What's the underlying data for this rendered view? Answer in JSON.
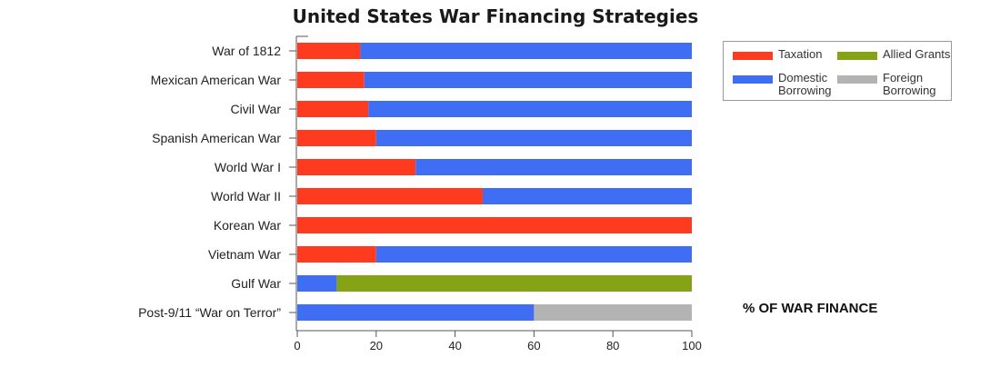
{
  "chart_data": {
    "type": "bar",
    "orientation": "horizontal",
    "stacked": true,
    "title": "United States War Financing Strategies",
    "xlabel": "% OF WAR FINANCE",
    "ylabel": "",
    "xlim": [
      0,
      100
    ],
    "xticks": [
      0,
      20,
      40,
      60,
      80,
      100
    ],
    "grid": false,
    "legend_position": "top-right",
    "categories": [
      "War of 1812",
      "Mexican American War",
      "Civil War",
      "Spanish American War",
      "World War I",
      "World War II",
      "Korean War",
      "Vietnam War",
      "Gulf War",
      "Post-9/11 “War on Terror”"
    ],
    "series": [
      {
        "name": "Taxation",
        "color": "#ff3b1f",
        "values": [
          16,
          17,
          18,
          20,
          30,
          47,
          100,
          20,
          0,
          0
        ]
      },
      {
        "name": "Domestic Borrowing",
        "color": "#3f6ef5",
        "values": [
          84,
          83,
          82,
          80,
          70,
          53,
          0,
          80,
          10,
          60
        ]
      },
      {
        "name": "Allied Grants",
        "color": "#86a316",
        "values": [
          0,
          0,
          0,
          0,
          0,
          0,
          0,
          0,
          90,
          0
        ]
      },
      {
        "name": "Foreign Borrowing",
        "color": "#b3b3b3",
        "values": [
          0,
          0,
          0,
          0,
          0,
          0,
          0,
          0,
          0,
          40
        ]
      }
    ]
  }
}
